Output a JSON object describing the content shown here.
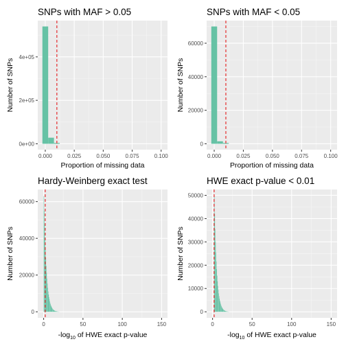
{
  "colors": {
    "bar": "#66c2a5",
    "vline": "#e41a1c",
    "panel_bg": "#ebebeb",
    "grid_major": "#ffffff",
    "grid_minor": "#f5f5f5",
    "tick_text": "#4d4d4d"
  },
  "chart_data": [
    {
      "type": "bar",
      "title": "SNPs with MAF > 0.05",
      "xlabel": "Proportion of missing data",
      "ylabel": "Number of SNPs",
      "xlim": [
        -0.0065,
        0.1055
      ],
      "ylim": [
        -27000,
        567000
      ],
      "xticks": [
        0,
        0.025,
        0.05,
        0.075,
        0.1
      ],
      "xtick_labels": [
        "0.000",
        "0.025",
        "0.050",
        "0.075",
        "0.100"
      ],
      "yticks": [
        0,
        200000,
        400000
      ],
      "ytick_labels": [
        "0e+00",
        "2e+05",
        "4e+05"
      ],
      "bin_width": 0.005,
      "bin_centers": [
        0,
        0.005,
        0.01
      ],
      "values": [
        540000,
        28000,
        4000
      ],
      "vline": 0.01
    },
    {
      "type": "bar",
      "title": "SNPs with MAF < 0.05",
      "xlabel": "Proportion of missing data",
      "ylabel": "Number of SNPs",
      "xlim": [
        -0.0065,
        0.1055
      ],
      "ylim": [
        -3500,
        73500
      ],
      "xticks": [
        0,
        0.025,
        0.05,
        0.075,
        0.1
      ],
      "xtick_labels": [
        "0.000",
        "0.025",
        "0.050",
        "0.075",
        "0.100"
      ],
      "yticks": [
        0,
        20000,
        40000,
        60000
      ],
      "ytick_labels": [
        "0",
        "20000",
        "40000",
        "60000"
      ],
      "bin_width": 0.005,
      "bin_centers": [
        0,
        0.005,
        0.01
      ],
      "values": [
        70000,
        1500,
        500
      ],
      "vline": 0.01
    },
    {
      "type": "bar",
      "title": "Hardy-Weinberg exact test",
      "xlabel": {
        "prefix": "-log",
        "sub": "10",
        "suffix": " of HWE exact p-value"
      },
      "ylabel": "Number of SNPs",
      "xlim": [
        -7.5,
        157.5
      ],
      "ylim": [
        -3300,
        66600
      ],
      "xticks": [
        0,
        50,
        100,
        150
      ],
      "xtick_labels": [
        "0",
        "50",
        "100",
        "150"
      ],
      "yticks": [
        0,
        20000,
        40000,
        60000
      ],
      "ytick_labels": [
        "0",
        "20000",
        "40000",
        "60000"
      ],
      "bin_width": 0.5,
      "bin_start": 0,
      "values": [
        63000,
        55000,
        47500,
        40500,
        34500,
        29500,
        25000,
        21300,
        18100,
        15400,
        13100,
        11100,
        9400,
        8000,
        6800,
        5700,
        4800,
        4100,
        3450,
        2900,
        2450,
        2050,
        1720,
        1440,
        1200,
        1000,
        830,
        690,
        570,
        470,
        390,
        320,
        260,
        210,
        170,
        140,
        110,
        90,
        70,
        55
      ],
      "vline": 2
    },
    {
      "type": "bar",
      "title": "HWE exact p-value < 0.01",
      "xlabel": {
        "prefix": "-log",
        "sub": "10",
        "suffix": " of HWE exact p-value"
      },
      "ylabel": "Number of SNPs",
      "xlim": [
        -7.5,
        157.5
      ],
      "ylim": [
        -2600,
        52500
      ],
      "xticks": [
        0,
        50,
        100,
        150
      ],
      "xtick_labels": [
        "0",
        "50",
        "100",
        "150"
      ],
      "yticks": [
        0,
        10000,
        20000,
        30000,
        40000,
        50000
      ],
      "ytick_labels": [
        "0",
        "10000",
        "20000",
        "30000",
        "40000",
        "50000"
      ],
      "bin_width": 0.5,
      "bin_start": 2,
      "values": [
        50000,
        42000,
        35500,
        30000,
        25500,
        21600,
        18300,
        15500,
        13100,
        11100,
        9400,
        7900,
        6700,
        5650,
        4800,
        4050,
        3400,
        2850,
        2400,
        2000,
        1680,
        1400,
        1170,
        970,
        800,
        660,
        540,
        440,
        360,
        290,
        235,
        190,
        150,
        120,
        95,
        75,
        60,
        45
      ],
      "vline": 2
    }
  ]
}
